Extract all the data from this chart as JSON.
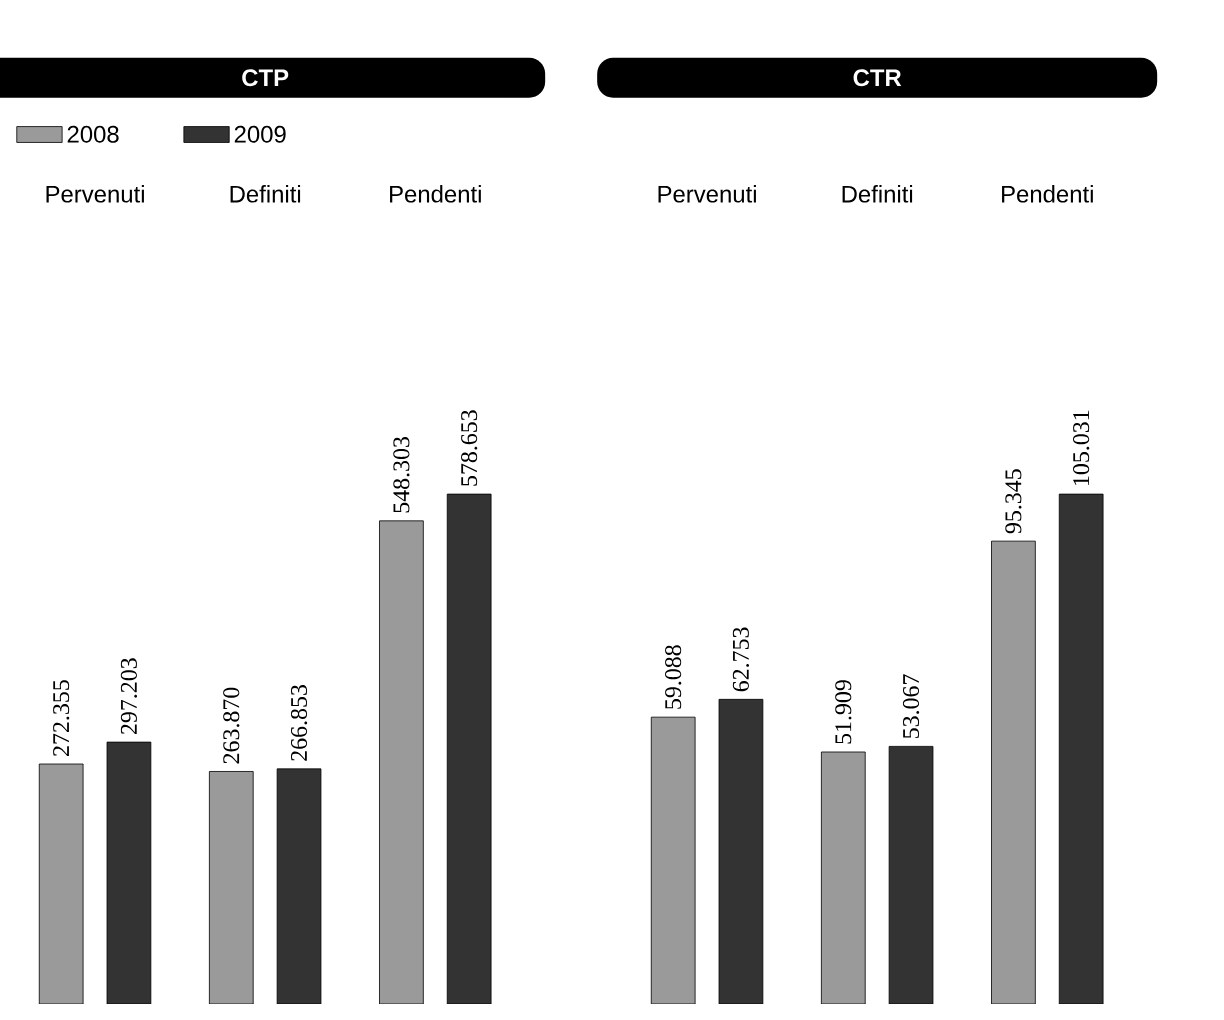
{
  "chart_data": [
    {
      "type": "bar",
      "title": "CTP",
      "categories": [
        "Pervenuti",
        "Definiti",
        "Pendenti"
      ],
      "legend": "top left",
      "tick_labels": "x",
      "series": [
        {
          "name": "2008",
          "color": "#9a9a9a",
          "values": [
            272355,
            263870,
            548303
          ],
          "value_labels": [
            "272.355",
            "263.870",
            "548.303"
          ]
        },
        {
          "name": "2009",
          "color": "#333333",
          "values": [
            297203,
            266853,
            578653
          ],
          "value_labels": [
            "297.203",
            "266.853",
            "578.653"
          ]
        }
      ]
    },
    {
      "type": "bar",
      "title": "CTR",
      "categories": [
        "Pervenuti",
        "Definiti",
        "Pendenti"
      ],
      "tick_labels": "x",
      "series": [
        {
          "color": "#9a9a9a",
          "values": [
            59088,
            51909,
            95345
          ],
          "value_labels": [
            "59.088",
            "51.909",
            "95.345"
          ]
        },
        {
          "color": "#333333",
          "values": [
            62753,
            53067,
            105031
          ],
          "value_labels": [
            "62.753",
            "53.067",
            "105.031"
          ]
        }
      ]
    }
  ]
}
